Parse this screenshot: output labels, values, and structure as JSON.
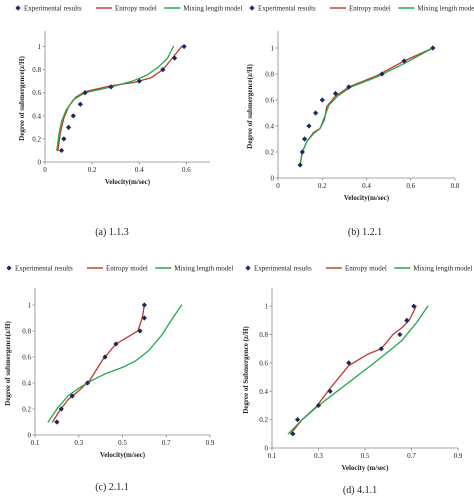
{
  "chart_data": [
    {
      "type": "scatter",
      "caption": "(a) 1.1.3",
      "xlabel": "Velocity(m/sec)",
      "ylabel": "Degree of submergence(z/H)",
      "xlim": [
        0,
        0.7
      ],
      "ylim": [
        0,
        1.1
      ],
      "xticks": [
        0,
        0.2,
        0.4,
        0.6
      ],
      "xtick_labels": [
        "0",
        "0.2",
        "0.4",
        "0.6"
      ],
      "yticks": [
        0,
        0.2,
        0.4,
        0.6,
        0.8,
        1
      ],
      "ytick_labels": [
        "0",
        "0.2",
        "0.4",
        "0.6",
        "0.8",
        "1"
      ],
      "legend": [
        "Experimental results",
        "Entropy model",
        "Mixing length model"
      ],
      "series": [
        {
          "name": "Experimental results",
          "kind": "points",
          "x": [
            0.07,
            0.08,
            0.1,
            0.12,
            0.15,
            0.17,
            0.28,
            0.4,
            0.5,
            0.55,
            0.59
          ],
          "y": [
            0.1,
            0.2,
            0.3,
            0.4,
            0.5,
            0.6,
            0.65,
            0.7,
            0.8,
            0.9,
            1.0
          ]
        },
        {
          "name": "Entropy model",
          "kind": "line",
          "x": [
            0.055,
            0.065,
            0.08,
            0.1,
            0.13,
            0.17,
            0.28,
            0.38,
            0.45,
            0.5,
            0.54,
            0.58
          ],
          "y": [
            0.1,
            0.25,
            0.38,
            0.48,
            0.56,
            0.61,
            0.66,
            0.69,
            0.73,
            0.8,
            0.9,
            1.0
          ]
        },
        {
          "name": "Mixing length model",
          "kind": "line",
          "x": [
            0.05,
            0.06,
            0.07,
            0.09,
            0.12,
            0.17,
            0.28,
            0.37,
            0.43,
            0.48,
            0.52,
            0.545
          ],
          "y": [
            0.1,
            0.25,
            0.35,
            0.45,
            0.54,
            0.6,
            0.65,
            0.7,
            0.75,
            0.82,
            0.9,
            1.0
          ]
        }
      ]
    },
    {
      "type": "scatter",
      "caption": "(b) 1.2.1",
      "xlabel": "Velocity(m/sec)",
      "ylabel": "Degree of submergence(z/H)",
      "xlim": [
        0,
        0.8
      ],
      "ylim": [
        0,
        1.1
      ],
      "xticks": [
        0,
        0.2,
        0.4,
        0.6,
        0.8
      ],
      "xtick_labels": [
        "0",
        "0.2",
        "0.4",
        "0.6",
        "0.8"
      ],
      "yticks": [
        0,
        0.2,
        0.4,
        0.6,
        0.8,
        1
      ],
      "ytick_labels": [
        "0",
        "0.2",
        "0.4",
        "0.6",
        "0.8",
        "1"
      ],
      "legend": [
        "Experimental results",
        "Entropy model",
        "Mixing length model"
      ],
      "series": [
        {
          "name": "Experimental results",
          "kind": "points",
          "x": [
            0.1,
            0.11,
            0.12,
            0.14,
            0.17,
            0.2,
            0.26,
            0.32,
            0.47,
            0.57,
            0.7
          ],
          "y": [
            0.1,
            0.2,
            0.3,
            0.4,
            0.5,
            0.6,
            0.65,
            0.7,
            0.8,
            0.9,
            1.0
          ]
        },
        {
          "name": "Entropy model",
          "kind": "line",
          "x": [
            0.1,
            0.11,
            0.13,
            0.16,
            0.19,
            0.21,
            0.22,
            0.26,
            0.32,
            0.45,
            0.57,
            0.7
          ],
          "y": [
            0.1,
            0.2,
            0.28,
            0.35,
            0.38,
            0.45,
            0.55,
            0.63,
            0.7,
            0.79,
            0.9,
            1.0
          ]
        },
        {
          "name": "Mixing length model",
          "kind": "line",
          "x": [
            0.1,
            0.11,
            0.13,
            0.16,
            0.19,
            0.21,
            0.23,
            0.27,
            0.33,
            0.45,
            0.57,
            0.7
          ],
          "y": [
            0.1,
            0.2,
            0.28,
            0.34,
            0.38,
            0.47,
            0.56,
            0.63,
            0.7,
            0.78,
            0.88,
            1.0
          ]
        }
      ]
    },
    {
      "type": "scatter",
      "caption": "(c) 2.1.1",
      "xlabel": "Velocity(m/sec)",
      "ylabel": "Degree of submergence(z/H)",
      "xlim": [
        0.1,
        0.9
      ],
      "ylim": [
        0,
        1.1
      ],
      "xticks": [
        0.1,
        0.3,
        0.5,
        0.7,
        0.9
      ],
      "xtick_labels": [
        "0.1",
        "0.3",
        "0.5",
        "0.7",
        "0.9"
      ],
      "yticks": [
        0,
        0.2,
        0.4,
        0.6,
        0.8,
        1
      ],
      "ytick_labels": [
        "0",
        "0.2",
        "0.4",
        "0.6",
        "0.8",
        "1"
      ],
      "legend": [
        "Experimental results",
        "Entropy model",
        "Mixing length model"
      ],
      "series": [
        {
          "name": "Experimental results",
          "kind": "points",
          "x": [
            0.2,
            0.22,
            0.27,
            0.34,
            0.42,
            0.47,
            0.58,
            0.6,
            0.6
          ],
          "y": [
            0.1,
            0.2,
            0.3,
            0.4,
            0.6,
            0.7,
            0.8,
            0.9,
            1.0
          ]
        },
        {
          "name": "Entropy model",
          "kind": "line",
          "x": [
            0.18,
            0.21,
            0.25,
            0.3,
            0.35,
            0.41,
            0.47,
            0.53,
            0.57,
            0.59,
            0.6
          ],
          "y": [
            0.1,
            0.18,
            0.27,
            0.34,
            0.42,
            0.58,
            0.7,
            0.76,
            0.8,
            0.9,
            1.0
          ]
        },
        {
          "name": "Mixing length model",
          "kind": "line",
          "x": [
            0.16,
            0.2,
            0.25,
            0.3,
            0.36,
            0.42,
            0.5,
            0.56,
            0.62,
            0.68,
            0.73,
            0.77
          ],
          "y": [
            0.1,
            0.2,
            0.3,
            0.36,
            0.42,
            0.47,
            0.52,
            0.57,
            0.65,
            0.77,
            0.9,
            1.0
          ]
        }
      ]
    },
    {
      "type": "scatter",
      "caption": "(d) 4.1.1",
      "xlabel": "Velocity (m/sec)",
      "ylabel": "Degree of Submergence (z/H)",
      "xlim": [
        0.1,
        0.9
      ],
      "ylim": [
        0,
        1.1
      ],
      "xticks": [
        0.1,
        0.3,
        0.5,
        0.7,
        0.9
      ],
      "xtick_labels": [
        "0.1",
        "0.3",
        "0.5",
        "0.7",
        "0.9"
      ],
      "yticks": [
        0,
        0.2,
        0.4,
        0.6,
        0.8,
        1
      ],
      "ytick_labels": [
        "0",
        "0.2",
        "0.4",
        "0.6",
        "0.8",
        "1"
      ],
      "legend": [
        "Experimental results",
        "Entropy model",
        "Mixing length model"
      ],
      "series": [
        {
          "name": "Experimental results",
          "kind": "points",
          "x": [
            0.19,
            0.21,
            0.3,
            0.35,
            0.43,
            0.57,
            0.65,
            0.68,
            0.71
          ],
          "y": [
            0.1,
            0.2,
            0.3,
            0.4,
            0.6,
            0.7,
            0.8,
            0.9,
            1.0
          ]
        },
        {
          "name": "Entropy model",
          "kind": "line",
          "x": [
            0.18,
            0.23,
            0.29,
            0.35,
            0.43,
            0.51,
            0.57,
            0.62,
            0.66,
            0.69,
            0.72
          ],
          "y": [
            0.1,
            0.2,
            0.29,
            0.42,
            0.58,
            0.66,
            0.7,
            0.8,
            0.85,
            0.9,
            1.0
          ]
        },
        {
          "name": "Mixing length model",
          "kind": "line",
          "x": [
            0.17,
            0.23,
            0.3,
            0.38,
            0.46,
            0.54,
            0.6,
            0.66,
            0.72,
            0.77
          ],
          "y": [
            0.1,
            0.2,
            0.3,
            0.4,
            0.5,
            0.6,
            0.68,
            0.76,
            0.88,
            1.0
          ]
        }
      ]
    }
  ],
  "colors": {
    "experimental": "#1a2a5e",
    "entropy": "#c0392b",
    "mixing": "#22a84a",
    "axis": "#8a8a8a"
  }
}
